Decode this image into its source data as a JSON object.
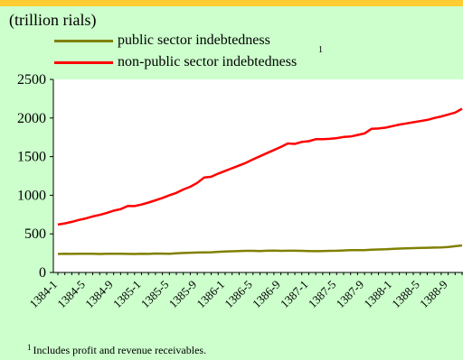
{
  "unit_label": "(trillion rials)",
  "legend": [
    {
      "label": "public sector indebtedness",
      "sup": "",
      "color": "#808000"
    },
    {
      "label": "non-public sector indebtedness",
      "sup": "1",
      "color": "#ff0000"
    }
  ],
  "footnote": {
    "marker": "1",
    "text": "Includes profit and revenue receivables."
  },
  "chart_data": {
    "type": "line",
    "title": "",
    "xlabel": "",
    "ylabel": "(trillion rials)",
    "ylim": [
      0,
      2500
    ],
    "yticks": [
      0,
      500,
      1000,
      1500,
      2000,
      2500
    ],
    "grid": false,
    "legend_position": "top",
    "x_tick_labels": [
      "1384-1",
      "1384-5",
      "1384-9",
      "1385-1",
      "1385-5",
      "1385-9",
      "1386-1",
      "1386-5",
      "1386-9",
      "1387-1",
      "1387-5",
      "1387-9",
      "1388-1",
      "1388-5",
      "1388-9"
    ],
    "x_tick_every": 4,
    "series": [
      {
        "name": "public sector indebtedness",
        "color": "#808000",
        "values": [
          240,
          242,
          241,
          243,
          242,
          243,
          240,
          242,
          243,
          242,
          241,
          240,
          242,
          241,
          245,
          244,
          242,
          248,
          252,
          256,
          258,
          260,
          262,
          268,
          272,
          275,
          278,
          280,
          280,
          278,
          282,
          283,
          280,
          282,
          281,
          280,
          278,
          276,
          278,
          280,
          282,
          285,
          288,
          290,
          290,
          295,
          298,
          300,
          305,
          310,
          312,
          315,
          318,
          320,
          322,
          325,
          330,
          340,
          350
        ]
      },
      {
        "name": "non-public sector indebtedness",
        "color": "#ff0000",
        "values": [
          620,
          635,
          655,
          680,
          700,
          725,
          745,
          770,
          800,
          820,
          860,
          860,
          880,
          905,
          935,
          965,
          1000,
          1030,
          1075,
          1110,
          1160,
          1230,
          1240,
          1280,
          1315,
          1350,
          1385,
          1420,
          1465,
          1505,
          1545,
          1585,
          1625,
          1670,
          1665,
          1690,
          1700,
          1725,
          1725,
          1730,
          1740,
          1755,
          1760,
          1780,
          1800,
          1860,
          1865,
          1875,
          1895,
          1915,
          1930,
          1945,
          1960,
          1975,
          2000,
          2020,
          2045,
          2070,
          2120
        ]
      }
    ]
  }
}
